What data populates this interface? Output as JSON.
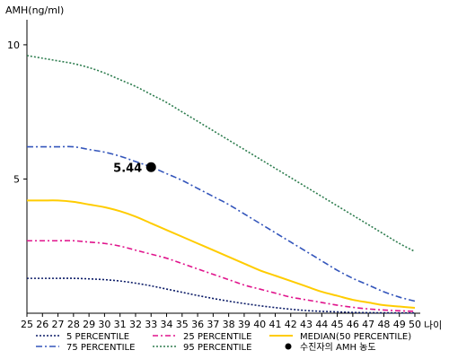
{
  "chart_data": {
    "type": "line",
    "ylabel": "AMH(ng/ml)",
    "xlabel": "나이",
    "xlim": [
      25,
      50
    ],
    "ylim": [
      0,
      11
    ],
    "x": [
      25,
      26,
      27,
      28,
      29,
      30,
      31,
      32,
      33,
      34,
      35,
      36,
      37,
      38,
      39,
      40,
      41,
      42,
      43,
      44,
      45,
      46,
      47,
      48,
      49,
      50
    ],
    "xticks": [
      25,
      26,
      27,
      28,
      29,
      30,
      31,
      32,
      33,
      34,
      35,
      36,
      37,
      38,
      39,
      40,
      41,
      42,
      43,
      44,
      45,
      46,
      47,
      48,
      49,
      50
    ],
    "yticks": [
      5,
      10
    ],
    "grid": false,
    "legend_position": "bottom",
    "series": [
      {
        "name": "95 PERCENTILE",
        "color": "#2e7d4f",
        "dash": "2,2",
        "values": [
          9.6,
          9.5,
          9.4,
          9.3,
          9.15,
          8.95,
          8.7,
          8.45,
          8.15,
          7.85,
          7.5,
          7.15,
          6.8,
          6.45,
          6.1,
          5.75,
          5.4,
          5.05,
          4.7,
          4.35,
          4.0,
          3.65,
          3.3,
          2.95,
          2.6,
          2.3
        ]
      },
      {
        "name": "75 PERCENTILE",
        "color": "#3355bb",
        "dash": "7,3,2,3",
        "values": [
          6.2,
          6.2,
          6.2,
          6.2,
          6.1,
          6.0,
          5.85,
          5.65,
          5.45,
          5.2,
          4.95,
          4.65,
          4.35,
          4.05,
          3.7,
          3.35,
          3.0,
          2.65,
          2.3,
          1.95,
          1.6,
          1.3,
          1.05,
          0.8,
          0.6,
          0.45
        ]
      },
      {
        "name": "MEDIAN(50 PERCENTILE)",
        "color": "#ffcc00",
        "dash": "",
        "values": [
          4.2,
          4.2,
          4.2,
          4.15,
          4.05,
          3.95,
          3.8,
          3.6,
          3.35,
          3.1,
          2.85,
          2.6,
          2.35,
          2.1,
          1.85,
          1.6,
          1.4,
          1.2,
          1.0,
          0.8,
          0.65,
          0.5,
          0.4,
          0.3,
          0.25,
          0.2
        ]
      },
      {
        "name": "25 PERCENTILE",
        "color": "#e0148c",
        "dash": "6,3,2,3",
        "values": [
          2.7,
          2.7,
          2.7,
          2.7,
          2.65,
          2.6,
          2.5,
          2.35,
          2.2,
          2.05,
          1.85,
          1.65,
          1.45,
          1.25,
          1.05,
          0.9,
          0.75,
          0.6,
          0.5,
          0.4,
          0.3,
          0.22,
          0.16,
          0.12,
          0.09,
          0.07
        ]
      },
      {
        "name": "5 PERCENTILE",
        "color": "#0a1a66",
        "dash": "2,2",
        "values": [
          1.3,
          1.3,
          1.3,
          1.3,
          1.28,
          1.25,
          1.2,
          1.12,
          1.02,
          0.9,
          0.78,
          0.66,
          0.55,
          0.45,
          0.36,
          0.28,
          0.21,
          0.15,
          0.1,
          0.07,
          0.05,
          0.03,
          0.02,
          0.015,
          0.01,
          0.01
        ]
      }
    ],
    "point": {
      "name": "수진자의 AMH 농도",
      "x": 33,
      "y": 5.44,
      "label": "5.44",
      "color": "#000000"
    },
    "legend": [
      {
        "label": "5 PERCENTILE",
        "color": "#0a1a66",
        "dash": "2,2",
        "kind": "line"
      },
      {
        "label": "25 PERCENTILE",
        "color": "#e0148c",
        "dash": "6,3,2,3",
        "kind": "line"
      },
      {
        "label": "MEDIAN(50 PERCENTILE)",
        "color": "#ffcc00",
        "dash": "",
        "kind": "line"
      },
      {
        "label": "75 PERCENTILE",
        "color": "#3355bb",
        "dash": "7,3,2,3",
        "kind": "line"
      },
      {
        "label": "95 PERCENTILE",
        "color": "#2e7d4f",
        "dash": "2,2",
        "kind": "line"
      },
      {
        "label": "수진자의 AMH 농도",
        "color": "#000000",
        "dash": "",
        "kind": "point"
      }
    ]
  }
}
